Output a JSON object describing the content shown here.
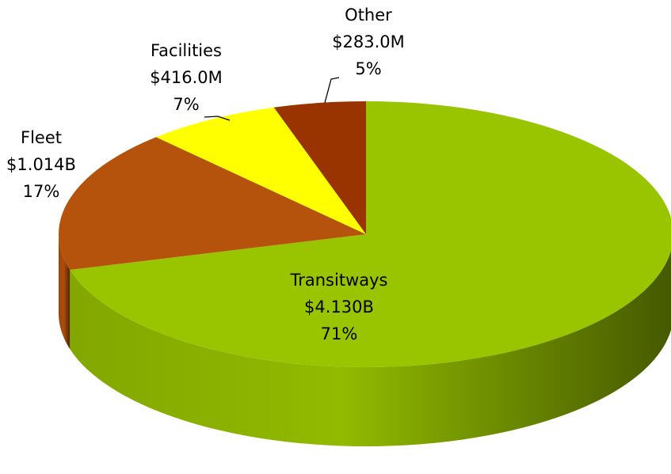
{
  "chart_data": {
    "type": "pie3d",
    "categories": [
      "Transitways",
      "Fleet",
      "Facilities",
      "Other"
    ],
    "values": [
      4130000000,
      1014000000,
      416000000,
      283000000
    ],
    "value_labels": [
      "$4.130B",
      "$1.014B",
      "$416.0M",
      "$283.0M"
    ],
    "percents": [
      71,
      17,
      7,
      5
    ],
    "percent_labels": [
      "71%",
      "17%",
      "7%",
      "5%"
    ],
    "colors": [
      "#99c400",
      "#b5520c",
      "#ffff00",
      "#993300"
    ]
  }
}
